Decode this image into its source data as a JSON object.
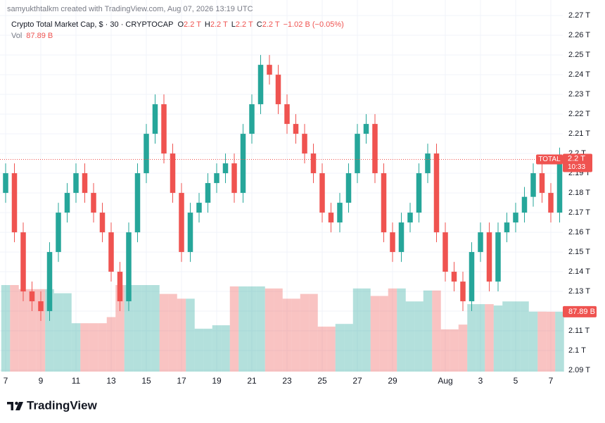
{
  "chart_data": {
    "type": "candlestick",
    "attribution": "samyukthtalkm created with TradingView.com, Aug 07, 2026 13:19 UTC",
    "title": "Crypto Total Market Cap, $ · 30 · CRYPTOCAP",
    "ohlc_legend": [
      {
        "key": "O",
        "label": "2.2 T"
      },
      {
        "key": "H",
        "label": "2.2 T"
      },
      {
        "key": "L",
        "label": "2.2 T"
      },
      {
        "key": "C",
        "label": "2.2 T"
      }
    ],
    "change_label": "−1.02 B (−0.05%)",
    "volume_legend": {
      "key": "Vol",
      "label": "87.89 B"
    },
    "symbol_label": "TOTAL",
    "countdown": "10:33",
    "last": {
      "value": 2.197,
      "label": "2.2 T"
    },
    "volume_label": "87.89 B",
    "brand": "TradingView",
    "up_color": "#26a69a",
    "down_color": "#ef5350",
    "grid": true,
    "x": [
      7,
      7.5,
      8,
      8.5,
      9,
      9.5,
      10,
      10.5,
      11,
      11.5,
      12,
      12.5,
      13,
      13.5,
      14,
      14.5,
      15,
      15.5,
      16,
      16.5,
      17,
      17.5,
      18,
      18.5,
      19,
      19.5,
      20,
      20.5,
      21,
      21.5,
      22,
      22.5,
      23,
      23.5,
      24,
      24.5,
      25,
      25.5,
      26,
      26.5,
      27,
      27.5,
      28,
      28.5,
      29,
      29.5,
      30,
      30.5,
      31,
      31.5,
      32,
      32.5,
      33,
      33.5,
      34,
      34.5,
      35,
      35.5,
      36,
      36.5,
      37,
      37.5,
      38,
      38.5
    ],
    "open": [
      2.18,
      2.19,
      2.16,
      2.13,
      2.125,
      2.12,
      2.15,
      2.17,
      2.18,
      2.19,
      2.18,
      2.17,
      2.16,
      2.14,
      2.125,
      2.16,
      2.19,
      2.21,
      2.225,
      2.2,
      2.18,
      2.15,
      2.17,
      2.175,
      2.185,
      2.19,
      2.195,
      2.18,
      2.21,
      2.225,
      2.245,
      2.24,
      2.225,
      2.215,
      2.21,
      2.2,
      2.19,
      2.17,
      2.165,
      2.175,
      2.19,
      2.21,
      2.215,
      2.19,
      2.16,
      2.15,
      2.165,
      2.17,
      2.19,
      2.2,
      2.16,
      2.14,
      2.135,
      2.125,
      2.15,
      2.16,
      2.135,
      2.16,
      2.165,
      2.17,
      2.178,
      2.19,
      2.18,
      2.17
    ],
    "high": [
      2.195,
      2.195,
      2.165,
      2.135,
      2.13,
      2.155,
      2.175,
      2.185,
      2.195,
      2.195,
      2.185,
      2.175,
      2.165,
      2.145,
      2.165,
      2.195,
      2.215,
      2.23,
      2.23,
      2.205,
      2.185,
      2.175,
      2.18,
      2.19,
      2.195,
      2.2,
      2.2,
      2.215,
      2.23,
      2.25,
      2.25,
      2.245,
      2.23,
      2.22,
      2.215,
      2.205,
      2.195,
      2.175,
      2.18,
      2.195,
      2.215,
      2.22,
      2.22,
      2.195,
      2.165,
      2.17,
      2.175,
      2.195,
      2.205,
      2.205,
      2.165,
      2.145,
      2.14,
      2.155,
      2.165,
      2.165,
      2.165,
      2.17,
      2.175,
      2.183,
      2.195,
      2.195,
      2.185,
      2.203
    ],
    "low": [
      2.175,
      2.155,
      2.125,
      2.12,
      2.115,
      2.115,
      2.145,
      2.165,
      2.175,
      2.175,
      2.165,
      2.155,
      2.135,
      2.12,
      2.12,
      2.155,
      2.185,
      2.205,
      2.195,
      2.175,
      2.145,
      2.145,
      2.165,
      2.17,
      2.18,
      2.185,
      2.175,
      2.175,
      2.205,
      2.22,
      2.235,
      2.22,
      2.21,
      2.205,
      2.195,
      2.185,
      2.165,
      2.16,
      2.16,
      2.17,
      2.185,
      2.205,
      2.185,
      2.155,
      2.145,
      2.145,
      2.16,
      2.165,
      2.185,
      2.155,
      2.135,
      2.13,
      2.12,
      2.12,
      2.145,
      2.13,
      2.13,
      2.155,
      2.16,
      2.165,
      2.173,
      2.175,
      2.165,
      2.165
    ],
    "close": [
      2.19,
      2.16,
      2.13,
      2.125,
      2.12,
      2.15,
      2.17,
      2.18,
      2.19,
      2.18,
      2.17,
      2.16,
      2.14,
      2.125,
      2.16,
      2.19,
      2.21,
      2.225,
      2.2,
      2.18,
      2.15,
      2.17,
      2.175,
      2.185,
      2.19,
      2.195,
      2.18,
      2.21,
      2.225,
      2.245,
      2.24,
      2.225,
      2.215,
      2.21,
      2.2,
      2.19,
      2.17,
      2.165,
      2.175,
      2.19,
      2.21,
      2.215,
      2.19,
      2.16,
      2.15,
      2.165,
      2.17,
      2.19,
      2.2,
      2.16,
      2.14,
      2.135,
      2.125,
      2.15,
      2.16,
      2.135,
      2.16,
      2.165,
      2.17,
      2.178,
      2.19,
      2.18,
      2.17,
      2.198
    ],
    "volume": [
      127,
      127,
      121,
      121,
      121,
      121,
      115,
      115,
      71,
      71,
      71,
      71,
      80,
      127,
      127,
      127,
      127,
      127,
      114,
      114,
      107,
      107,
      63,
      63,
      68,
      68,
      125,
      125,
      125,
      125,
      122,
      122,
      107,
      107,
      114,
      114,
      66,
      66,
      70,
      70,
      122,
      122,
      111,
      111,
      122,
      122,
      103,
      103,
      119,
      119,
      62,
      62,
      69,
      99,
      99,
      99,
      97,
      103,
      103,
      103,
      88,
      88,
      87.89,
      87.89
    ],
    "xlim": [
      6.68,
      38.68
    ],
    "ylim": [
      2.0893,
      2.2779
    ],
    "xticks": [
      7,
      9,
      11,
      13,
      15,
      17,
      19,
      21,
      23,
      25,
      27,
      29,
      {
        "value": 32,
        "label": "Aug"
      },
      {
        "value": 34,
        "label": "3"
      },
      {
        "value": 36,
        "label": "5"
      },
      {
        "value": 38,
        "label": "7"
      }
    ],
    "yticks": [
      {
        "value": 2.09,
        "label": "2.09 T"
      },
      {
        "value": 2.1,
        "label": "2.1 T"
      },
      {
        "value": 2.11,
        "label": "2.11 T"
      },
      {
        "value": 2.12,
        "label": "2.12 T"
      },
      {
        "value": 2.13,
        "label": "2.13 T"
      },
      {
        "value": 2.14,
        "label": "2.14 T"
      },
      {
        "value": 2.15,
        "label": "2.15 T"
      },
      {
        "value": 2.16,
        "label": "2.16 T"
      },
      {
        "value": 2.17,
        "label": "2.17 T"
      },
      {
        "value": 2.18,
        "label": "2.18 T"
      },
      {
        "value": 2.19,
        "label": "2.19 T"
      },
      {
        "value": 2.2,
        "label": "2.2 T"
      },
      {
        "value": 2.21,
        "label": "2.21 T"
      },
      {
        "value": 2.22,
        "label": "2.22 T"
      },
      {
        "value": 2.23,
        "label": "2.23 T"
      },
      {
        "value": 2.24,
        "label": "2.24 T"
      },
      {
        "value": 2.25,
        "label": "2.25 T"
      },
      {
        "value": 2.26,
        "label": "2.26 T"
      },
      {
        "value": 2.27,
        "label": "2.27 T"
      }
    ]
  }
}
